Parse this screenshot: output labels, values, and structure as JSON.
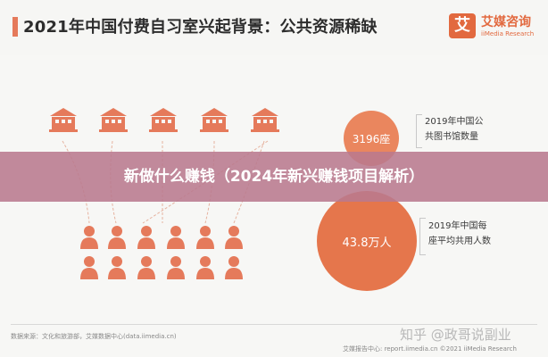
{
  "header": {
    "title": "2021年中国付费自习室兴起背景：公共资源稀缺",
    "logo_glyph": "艾",
    "brand": "艾媒咨询",
    "brand_sub": "iiMedia Research"
  },
  "stats": [
    {
      "value": "3196座",
      "label_line1": "2019年中国公",
      "label_line2": "共图书馆数量"
    },
    {
      "value": "43.8万人",
      "label_line1": "2019年中国每",
      "label_line2": "座平均共用人数"
    }
  ],
  "banner": {
    "text": "新做什么赚钱（2024年新兴赚钱项目解析）"
  },
  "footer": {
    "source": "数据来源：文化和旅游部，艾媒数据中心(data.iimedia.cn)",
    "right": "艾媒报告中心: report.iimedia.cn  ©2021  iiMedia Research",
    "watermark": "知乎 @政哥说副业"
  },
  "colors": {
    "accent": "#e5764c",
    "icon": "#e57a5b",
    "banner": "#ba7a8e"
  },
  "icons": {
    "building": "library-building-icon",
    "person": "person-icon",
    "logo": "iimedia-logo-icon"
  }
}
